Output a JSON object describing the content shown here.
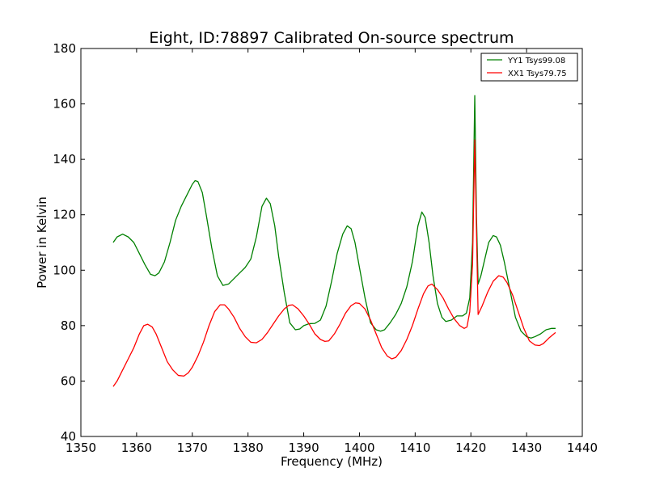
{
  "chart_data": {
    "type": "line",
    "title": "Eight, ID:78897 Calibrated On-source spectrum",
    "xlabel": "Frequency (MHz)",
    "ylabel": "Power in Kelvin",
    "xlim": [
      1350,
      1440
    ],
    "ylim": [
      40,
      180
    ],
    "xticks": [
      1350,
      1360,
      1370,
      1380,
      1390,
      1400,
      1410,
      1420,
      1430,
      1440
    ],
    "yticks": [
      40,
      60,
      80,
      100,
      120,
      140,
      160,
      180
    ],
    "grid": false,
    "legend_position": "top-right",
    "series": [
      {
        "name": "YY1 Tsys99.08",
        "color": "#008000",
        "points": [
          [
            1355.8,
            110
          ],
          [
            1356.5,
            112
          ],
          [
            1357.5,
            113
          ],
          [
            1358.5,
            112
          ],
          [
            1359.5,
            110
          ],
          [
            1360.5,
            106
          ],
          [
            1361.5,
            102
          ],
          [
            1362.5,
            98.5
          ],
          [
            1363.3,
            98
          ],
          [
            1364.0,
            99
          ],
          [
            1365.0,
            103
          ],
          [
            1366.0,
            110
          ],
          [
            1367.0,
            118
          ],
          [
            1368.0,
            123
          ],
          [
            1369.0,
            127
          ],
          [
            1370.0,
            131
          ],
          [
            1370.5,
            132.3
          ],
          [
            1371.0,
            132
          ],
          [
            1371.8,
            128
          ],
          [
            1372.5,
            120
          ],
          [
            1373.5,
            108
          ],
          [
            1374.5,
            98
          ],
          [
            1375.5,
            94.5
          ],
          [
            1376.5,
            95
          ],
          [
            1377.5,
            97
          ],
          [
            1378.5,
            99
          ],
          [
            1379.5,
            101
          ],
          [
            1380.5,
            104
          ],
          [
            1381.5,
            112
          ],
          [
            1382.5,
            123
          ],
          [
            1383.3,
            126
          ],
          [
            1384.0,
            124
          ],
          [
            1384.8,
            116
          ],
          [
            1385.5,
            105
          ],
          [
            1386.5,
            92
          ],
          [
            1387.5,
            81
          ],
          [
            1388.5,
            78.5
          ],
          [
            1389.3,
            78.8
          ],
          [
            1390.0,
            80
          ],
          [
            1391.0,
            80.7
          ],
          [
            1392.0,
            80.8
          ],
          [
            1393.0,
            82
          ],
          [
            1394.0,
            87
          ],
          [
            1395.0,
            96
          ],
          [
            1396.0,
            106
          ],
          [
            1397.0,
            113
          ],
          [
            1397.8,
            116
          ],
          [
            1398.5,
            115
          ],
          [
            1399.2,
            110
          ],
          [
            1400.0,
            101
          ],
          [
            1401.0,
            90
          ],
          [
            1402.0,
            81
          ],
          [
            1403.0,
            78.5
          ],
          [
            1403.8,
            78
          ],
          [
            1404.5,
            78.5
          ],
          [
            1405.5,
            81
          ],
          [
            1406.5,
            84
          ],
          [
            1407.5,
            88
          ],
          [
            1408.5,
            94
          ],
          [
            1409.5,
            103
          ],
          [
            1410.5,
            116
          ],
          [
            1411.2,
            121
          ],
          [
            1411.8,
            119
          ],
          [
            1412.5,
            110
          ],
          [
            1413.2,
            98
          ],
          [
            1414.0,
            88
          ],
          [
            1414.8,
            83
          ],
          [
            1415.5,
            81.5
          ],
          [
            1416.5,
            82
          ],
          [
            1417.5,
            83.5
          ],
          [
            1418.5,
            83.5
          ],
          [
            1419.2,
            84.5
          ],
          [
            1419.8,
            90
          ],
          [
            1420.3,
            110
          ],
          [
            1420.7,
            163
          ],
          [
            1421.0,
            120
          ],
          [
            1421.3,
            95
          ],
          [
            1421.8,
            98
          ],
          [
            1422.5,
            104
          ],
          [
            1423.2,
            110
          ],
          [
            1424.0,
            112.5
          ],
          [
            1424.6,
            112
          ],
          [
            1425.3,
            109
          ],
          [
            1426.0,
            103
          ],
          [
            1427.0,
            93
          ],
          [
            1428.0,
            83
          ],
          [
            1429.0,
            78
          ],
          [
            1430.0,
            76
          ],
          [
            1430.8,
            75.5
          ],
          [
            1431.5,
            76
          ],
          [
            1432.5,
            77
          ],
          [
            1433.5,
            78.5
          ],
          [
            1434.5,
            79
          ],
          [
            1435.2,
            79
          ]
        ]
      },
      {
        "name": "XX1 Tsys79.75",
        "color": "#ff0000",
        "points": [
          [
            1355.8,
            58
          ],
          [
            1356.5,
            60
          ],
          [
            1357.5,
            64
          ],
          [
            1358.5,
            68
          ],
          [
            1359.5,
            72
          ],
          [
            1360.5,
            77
          ],
          [
            1361.3,
            80
          ],
          [
            1362.0,
            80.5
          ],
          [
            1362.8,
            79.5
          ],
          [
            1363.5,
            77
          ],
          [
            1364.5,
            72
          ],
          [
            1365.5,
            67
          ],
          [
            1366.5,
            64
          ],
          [
            1367.5,
            62
          ],
          [
            1368.5,
            61.8
          ],
          [
            1369.3,
            63
          ],
          [
            1370.0,
            65
          ],
          [
            1371.0,
            69
          ],
          [
            1372.0,
            74
          ],
          [
            1373.0,
            80
          ],
          [
            1374.0,
            85
          ],
          [
            1375.0,
            87.5
          ],
          [
            1375.8,
            87.5
          ],
          [
            1376.5,
            86
          ],
          [
            1377.5,
            83
          ],
          [
            1378.5,
            79
          ],
          [
            1379.5,
            76
          ],
          [
            1380.5,
            74
          ],
          [
            1381.5,
            73.8
          ],
          [
            1382.5,
            75
          ],
          [
            1383.5,
            77.5
          ],
          [
            1384.5,
            80.5
          ],
          [
            1385.5,
            83.5
          ],
          [
            1386.5,
            86
          ],
          [
            1387.3,
            87.3
          ],
          [
            1388.0,
            87.5
          ],
          [
            1389.0,
            86
          ],
          [
            1390.0,
            83.5
          ],
          [
            1391.0,
            80.5
          ],
          [
            1392.0,
            77
          ],
          [
            1393.0,
            75
          ],
          [
            1393.8,
            74.3
          ],
          [
            1394.5,
            74.5
          ],
          [
            1395.5,
            77
          ],
          [
            1396.5,
            80.5
          ],
          [
            1397.5,
            84.5
          ],
          [
            1398.5,
            87.2
          ],
          [
            1399.3,
            88.2
          ],
          [
            1400.0,
            88
          ],
          [
            1401.0,
            86
          ],
          [
            1402.0,
            82
          ],
          [
            1403.0,
            77
          ],
          [
            1404.0,
            72
          ],
          [
            1405.0,
            69
          ],
          [
            1405.8,
            68
          ],
          [
            1406.5,
            68.5
          ],
          [
            1407.5,
            71
          ],
          [
            1408.5,
            75
          ],
          [
            1409.5,
            80
          ],
          [
            1410.5,
            86
          ],
          [
            1411.5,
            91.5
          ],
          [
            1412.3,
            94.3
          ],
          [
            1413.0,
            95
          ],
          [
            1414.0,
            93
          ],
          [
            1415.0,
            90
          ],
          [
            1416.0,
            86
          ],
          [
            1417.0,
            82.5
          ],
          [
            1418.0,
            80
          ],
          [
            1418.8,
            79
          ],
          [
            1419.3,
            79.5
          ],
          [
            1419.8,
            85
          ],
          [
            1420.3,
            102
          ],
          [
            1420.7,
            147
          ],
          [
            1421.0,
            115
          ],
          [
            1421.3,
            84
          ],
          [
            1422.0,
            87
          ],
          [
            1423.0,
            92
          ],
          [
            1424.0,
            96
          ],
          [
            1425.0,
            98
          ],
          [
            1425.8,
            97.5
          ],
          [
            1426.5,
            95.5
          ],
          [
            1427.5,
            91
          ],
          [
            1428.5,
            85
          ],
          [
            1429.5,
            79
          ],
          [
            1430.5,
            74.5
          ],
          [
            1431.5,
            73
          ],
          [
            1432.3,
            72.8
          ],
          [
            1433.0,
            73.5
          ],
          [
            1434.0,
            75.5
          ],
          [
            1435.2,
            77.5
          ]
        ]
      }
    ]
  }
}
